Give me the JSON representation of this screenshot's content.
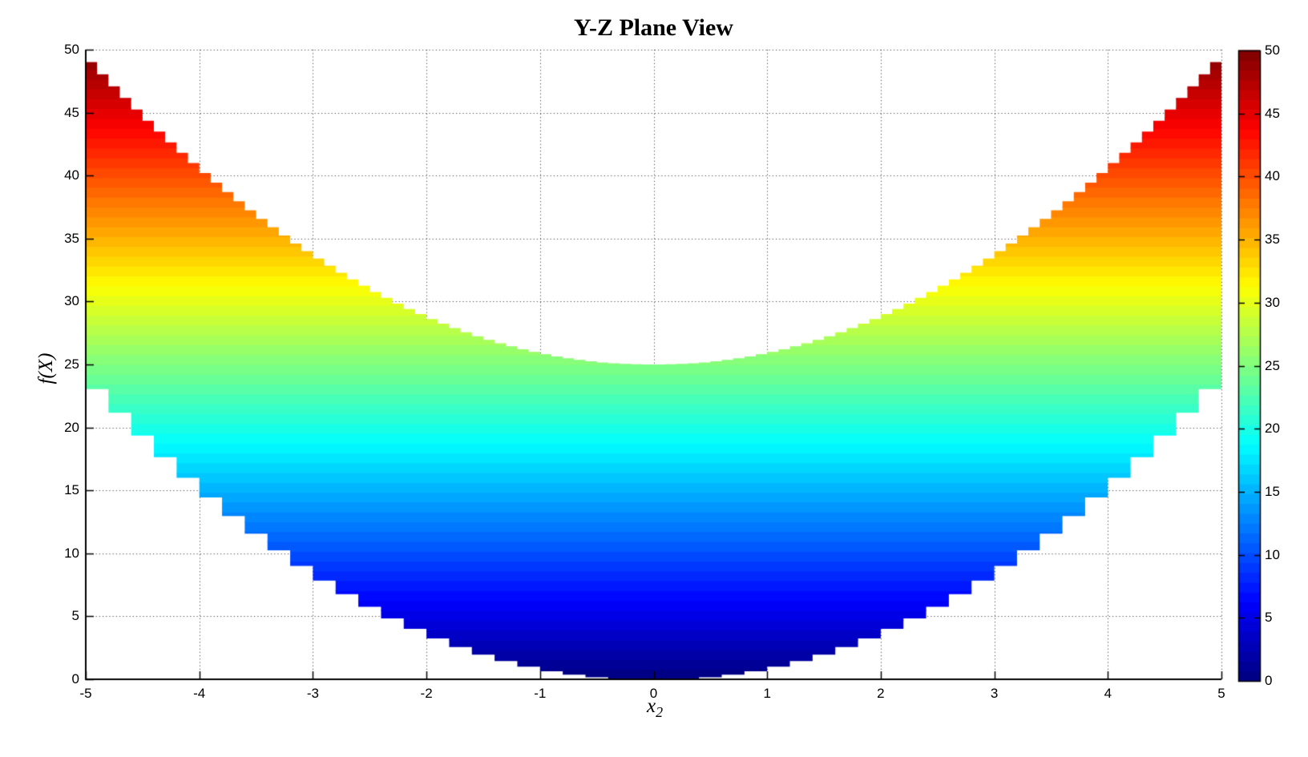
{
  "chart_data": {
    "type": "area",
    "title": "Y-Z Plane View",
    "xlabel_base": "x",
    "xlabel_sub": "2",
    "ylabel": "f(X)",
    "description": "Side (Y-Z plane) projection of the paraboloid f(X)=x1^2+x2^2 with x1,x2 in [-5,5]; filled band between lower envelope f=x2^2 and upper envelope f=x2^2+25, colored by f with a jet colormap.",
    "x": [
      -5,
      -4,
      -3,
      -2,
      -1,
      0,
      1,
      2,
      3,
      4,
      5
    ],
    "lower_envelope": [
      25,
      16,
      9,
      4,
      1,
      0,
      1,
      4,
      9,
      16,
      25
    ],
    "upper_envelope": [
      50,
      41,
      34,
      29,
      26,
      25,
      26,
      29,
      34,
      41,
      50
    ],
    "offset": 25,
    "xlim": [
      -5,
      5
    ],
    "ylim": [
      0,
      50
    ],
    "x_ticks": [
      -5,
      -4,
      -3,
      -2,
      -1,
      0,
      1,
      2,
      3,
      4,
      5
    ],
    "y_ticks": [
      0,
      5,
      10,
      15,
      20,
      25,
      30,
      35,
      40,
      45,
      50
    ],
    "grid": "dotted",
    "grid_color": "#1a1a1a",
    "axis_color": "#000000",
    "background_color": "#ffffff",
    "colormap": {
      "name": "jet",
      "levels": 64,
      "min": 0,
      "max": 50,
      "anchors": [
        "#000080",
        "#0000ff",
        "#00ffff",
        "#80ff80",
        "#ffff00",
        "#ff8000",
        "#ff0000",
        "#800000"
      ]
    },
    "colorbar_ticks": [
      0,
      5,
      10,
      15,
      20,
      25,
      30,
      35,
      40,
      45,
      50
    ],
    "lower_step_x": 0.2,
    "upper_step_x": 0.1
  }
}
